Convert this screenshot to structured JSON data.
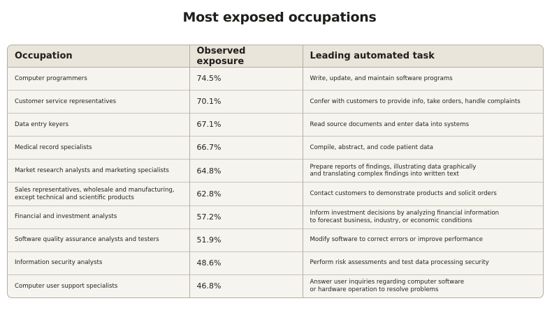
{
  "title": "Most exposed occupations",
  "table": {
    "columns": [
      "Occupation",
      "Observed exposure",
      "Leading automated task"
    ],
    "rows": [
      [
        "Computer programmers",
        "74.5%",
        "Write, update, and maintain software programs"
      ],
      [
        "Customer service representatives",
        "70.1%",
        "Confer with customers to provide info, take orders, handle complaints"
      ],
      [
        "Data entry keyers",
        "67.1%",
        "Read source documents and enter data into systems"
      ],
      [
        "Medical record specialists",
        "66.7%",
        "Compile, abstract, and code patient data"
      ],
      [
        "Market research analysts and marketing specialists",
        "64.8%",
        "Prepare reports of findings, illustrating data graphically\nand translating complex findings into written text"
      ],
      [
        "Sales representatives, wholesale and manufacturing,\nexcept technical and scientific products",
        "62.8%",
        "Contact customers to demonstrate products and solicit orders"
      ],
      [
        "Financial and investment analysts",
        "57.2%",
        "Inform investment decisions by analyzing financial information\nto forecast business, industry, or economic conditions"
      ],
      [
        "Software quality assurance analysts and testers",
        "51.9%",
        "Modify software to correct errors or improve performance"
      ],
      [
        "Information security analysts",
        "48.6%",
        "Perform risk assessments and test data processing security"
      ],
      [
        "Computer user support specialists",
        "46.8%",
        "Answer user inquiries regarding computer software\nor hardware operation to resolve problems"
      ]
    ]
  }
}
